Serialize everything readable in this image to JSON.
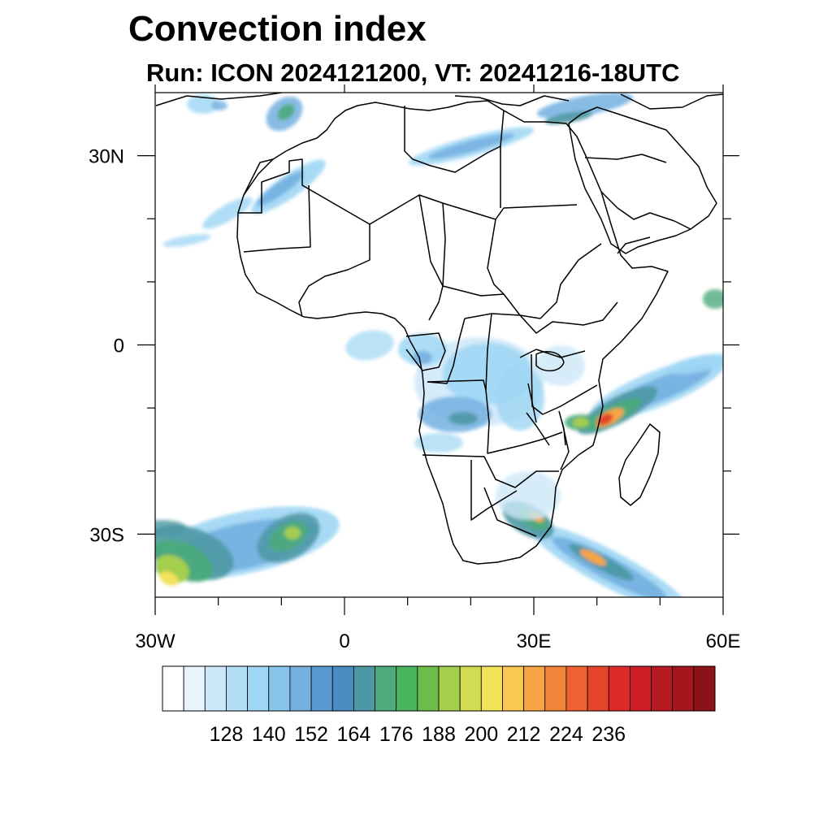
{
  "title": "Convection index",
  "subtitle": "Run: ICON 2024121200,  VT: 20241216-18UTC",
  "map": {
    "lon_range": [
      -30,
      60
    ],
    "lat_range": [
      -40,
      40
    ],
    "x_ticks": [
      {
        "value": -30,
        "label": "30W"
      },
      {
        "value": 0,
        "label": "0"
      },
      {
        "value": 30,
        "label": "30E"
      },
      {
        "value": 60,
        "label": "60E"
      }
    ],
    "y_ticks": [
      {
        "value": 30,
        "label": "30N"
      },
      {
        "value": 0,
        "label": "0"
      },
      {
        "value": -30,
        "label": "30S"
      }
    ],
    "minor_x_ticks": [
      -20,
      -10,
      10,
      20,
      40,
      50
    ],
    "minor_y_ticks": [
      20,
      10,
      -10,
      -20
    ]
  },
  "colorbar": {
    "labels": [
      "128",
      "140",
      "152",
      "164",
      "176",
      "188",
      "200",
      "212",
      "224",
      "236"
    ],
    "colors": [
      "#ffffff",
      "#e8f4fc",
      "#cce8f8",
      "#b4def6",
      "#9ed6f4",
      "#86c4ea",
      "#74b0e0",
      "#5a9ad2",
      "#4a8cc2",
      "#4c98a4",
      "#4caa7c",
      "#4ab45c",
      "#6cbc4a",
      "#a4ce4e",
      "#d2dc52",
      "#f2e25a",
      "#f8c852",
      "#f6a444",
      "#f2843a",
      "#ee6232",
      "#e4442c",
      "#dc2a28",
      "#cc1e24",
      "#b81a22",
      "#a4161e",
      "#8c121a"
    ]
  },
  "field": {
    "palette": {
      "pale": "#cce8f8",
      "light": "#9ed6f4",
      "blue": "#74b0e0",
      "teal": "#4c98a4",
      "green": "#4caa7c",
      "ltgreen": "#a4ce4e",
      "yellow": "#f2e25a",
      "orange": "#f6a444",
      "red": "#e4442c"
    }
  }
}
